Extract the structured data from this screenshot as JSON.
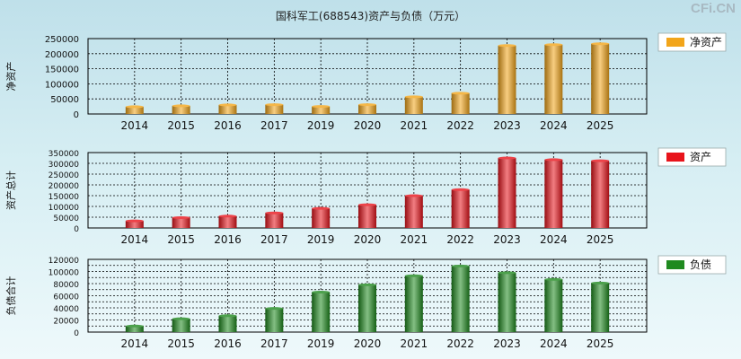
{
  "title": "国科军工(688543)资产与负债（万元）",
  "watermark": "CFi.CN",
  "colors": {
    "net_assets": "#f2a51a",
    "assets": "#e8141b",
    "liabilities": "#1f8a1f"
  },
  "chart_data": [
    {
      "type": "bar",
      "ylabel": "净资产",
      "legend": "净资产",
      "legend_position": "right",
      "categories": [
        "2014",
        "2015",
        "2016",
        "2017",
        "2019",
        "2020",
        "2021",
        "2022",
        "2023",
        "2024",
        "2025"
      ],
      "values": [
        24000,
        27000,
        30000,
        31000,
        25000,
        31000,
        57000,
        69000,
        227000,
        230000,
        233000
      ],
      "ylim": [
        0,
        250000
      ],
      "yticks": [
        0,
        50000,
        100000,
        150000,
        200000,
        250000
      ],
      "grid": true
    },
    {
      "type": "bar",
      "ylabel": "资产总计",
      "legend": "资产",
      "legend_position": "right",
      "categories": [
        "2014",
        "2015",
        "2016",
        "2017",
        "2019",
        "2020",
        "2021",
        "2022",
        "2023",
        "2024",
        "2025"
      ],
      "values": [
        33000,
        48000,
        55000,
        70000,
        91000,
        108000,
        150000,
        178000,
        325000,
        317000,
        312000
      ],
      "ylim": [
        0,
        350000
      ],
      "yticks": [
        0,
        50000,
        100000,
        150000,
        200000,
        250000,
        300000,
        350000
      ],
      "grid": true
    },
    {
      "type": "bar",
      "ylabel": "负债合计",
      "legend": "负债",
      "legend_position": "right",
      "categories": [
        "2014",
        "2015",
        "2016",
        "2017",
        "2019",
        "2020",
        "2021",
        "2022",
        "2023",
        "2024",
        "2025"
      ],
      "values": [
        10000,
        22000,
        27000,
        39000,
        66000,
        78000,
        93000,
        109000,
        98000,
        87000,
        81000
      ],
      "ylim": [
        0,
        120000
      ],
      "yticks": [
        0,
        10000,
        20000,
        30000,
        40000,
        50000,
        60000,
        70000,
        80000,
        90000,
        100000,
        110000,
        120000
      ],
      "ytick_labels": [
        0,
        20000,
        40000,
        60000,
        80000,
        100000,
        120000
      ],
      "grid": true
    }
  ]
}
